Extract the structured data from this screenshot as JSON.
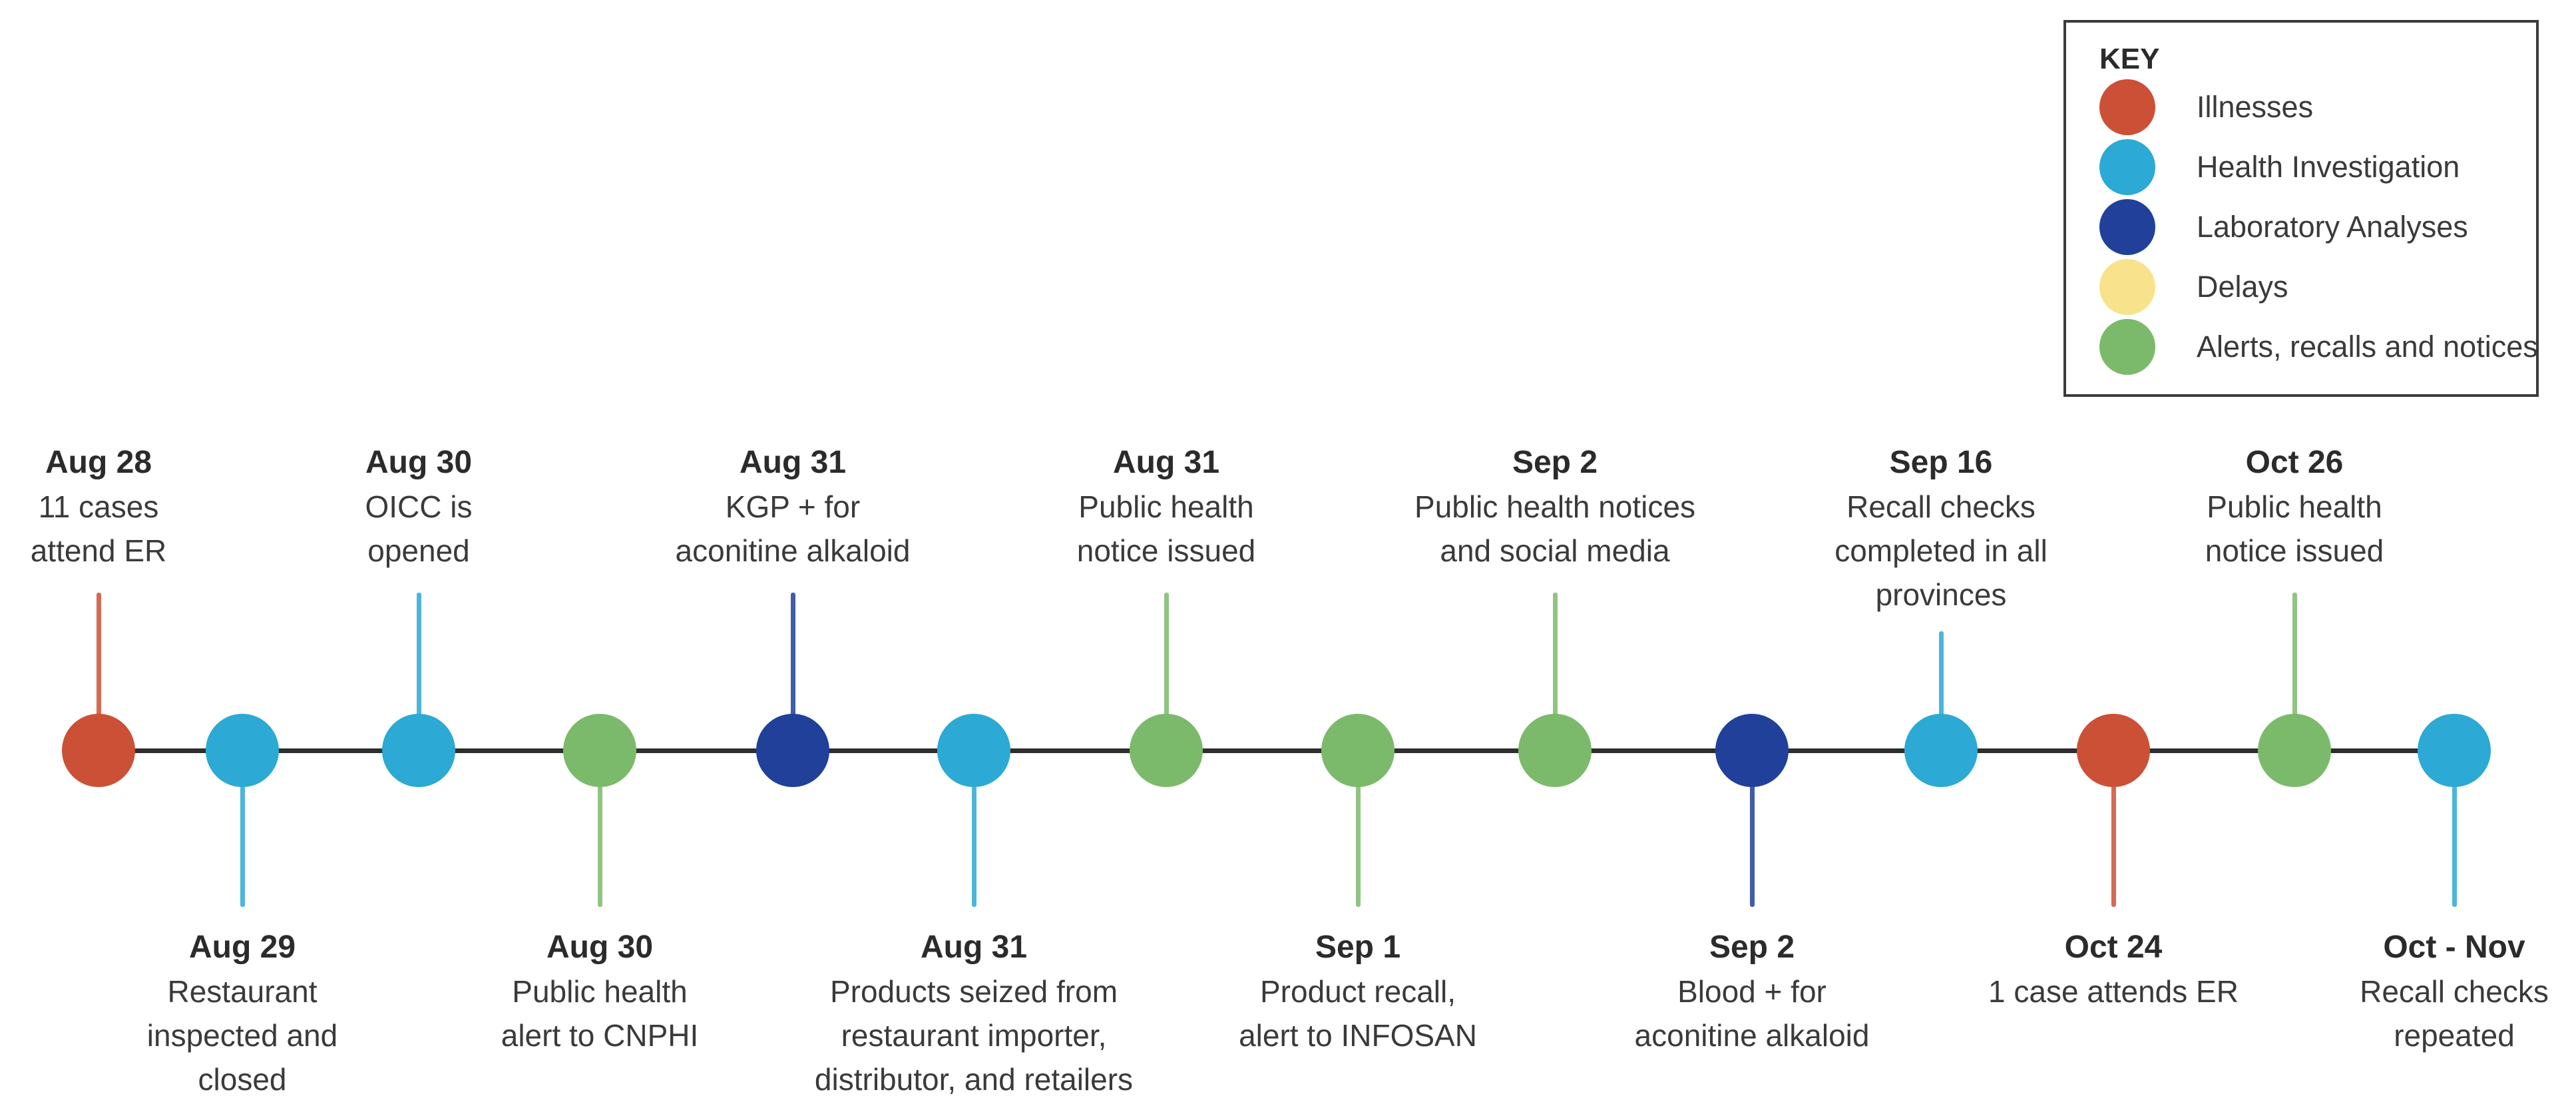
{
  "colors": {
    "illnesses": "#CC5036",
    "health_investigation": "#2CA9D4",
    "laboratory_analyses": "#20409A",
    "delays": "#F8E38C",
    "alerts_recalls_notices": "#7CBA6B",
    "axis": "#2e2e2e",
    "text": "#3a3a3a"
  },
  "legend": {
    "title": "KEY",
    "items": [
      {
        "label": "Illnesses",
        "category": "illnesses"
      },
      {
        "label": "Health Investigation",
        "category": "health_investigation"
      },
      {
        "label": "Laboratory Analyses",
        "category": "laboratory_analyses"
      },
      {
        "label": "Delays",
        "category": "delays"
      },
      {
        "label": "Alerts, recalls and notices",
        "category": "alerts_recalls_notices"
      }
    ]
  },
  "timeline": {
    "events": [
      {
        "date": "Aug 28",
        "lines": [
          "11 cases",
          "attend ER"
        ],
        "category": "illnesses",
        "side": "above"
      },
      {
        "date": "Aug 29",
        "lines": [
          "Restaurant",
          "inspected and",
          "closed"
        ],
        "category": "health_investigation",
        "side": "below"
      },
      {
        "date": "Aug 30",
        "lines": [
          "OICC is",
          "opened"
        ],
        "category": "health_investigation",
        "side": "above"
      },
      {
        "date": "Aug 30",
        "lines": [
          "Public health",
          "alert to CNPHI"
        ],
        "category": "alerts_recalls_notices",
        "side": "below"
      },
      {
        "date": "Aug 31",
        "lines": [
          "KGP + for",
          "aconitine alkaloid"
        ],
        "category": "laboratory_analyses",
        "side": "above"
      },
      {
        "date": "Aug 31",
        "lines": [
          "Products seized from",
          "restaurant importer,",
          "distributor, and retailers"
        ],
        "category": "health_investigation",
        "side": "below"
      },
      {
        "date": "Aug 31",
        "lines": [
          "Public health",
          "notice issued"
        ],
        "category": "alerts_recalls_notices",
        "side": "above"
      },
      {
        "date": "Sep 1",
        "lines": [
          "Product recall,",
          "alert to INFOSAN"
        ],
        "category": "alerts_recalls_notices",
        "side": "below"
      },
      {
        "date": "Sep 2",
        "lines": [
          "Public health notices",
          "and social media"
        ],
        "category": "alerts_recalls_notices",
        "side": "above"
      },
      {
        "date": "Sep 2",
        "lines": [
          "Blood + for",
          "aconitine alkaloid"
        ],
        "category": "laboratory_analyses",
        "side": "below"
      },
      {
        "date": "Sep 16",
        "lines": [
          "Recall checks",
          "completed in all",
          "provinces"
        ],
        "category": "health_investigation",
        "side": "above"
      },
      {
        "date": "Oct 24",
        "lines": [
          "1 case attends ER"
        ],
        "category": "illnesses",
        "side": "below"
      },
      {
        "date": "Oct 26",
        "lines": [
          "Public health",
          "notice issued"
        ],
        "category": "alerts_recalls_notices",
        "side": "above"
      },
      {
        "date": "Oct - Nov",
        "lines": [
          "Recall checks",
          "repeated"
        ],
        "category": "health_investigation",
        "side": "below"
      }
    ]
  }
}
